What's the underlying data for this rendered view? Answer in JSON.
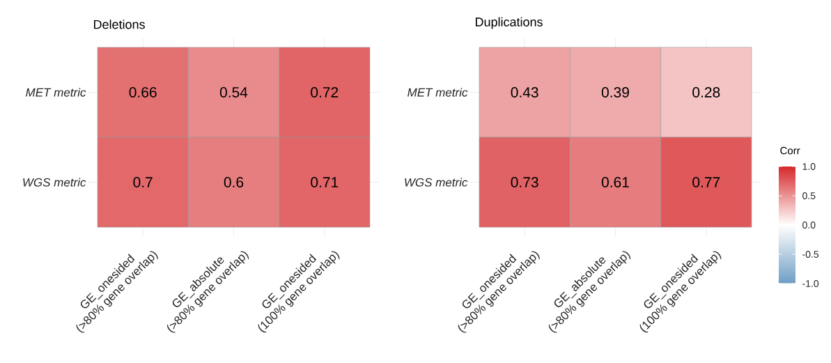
{
  "chart_data": [
    {
      "type": "heatmap",
      "title": "Deletions",
      "categories": [
        "GE_onesided\n(>80% gene overlap)",
        "GE_absolute\n(>80% gene overlap)",
        "GE_onesided\n(100% gene overlap)"
      ],
      "y_categories": [
        "MET metric",
        "WGS metric"
      ],
      "cells": [
        [
          0.66,
          0.54,
          0.72
        ],
        [
          0.7,
          0.6,
          0.71
        ]
      ],
      "data_labels": true,
      "grid": true
    },
    {
      "type": "heatmap",
      "title": "Duplications",
      "categories": [
        "GE_onesided\n(>80% gene overlap)",
        "GE_absolute\n(>80% gene overlap)",
        "GE_onesided\n(100% gene overlap)"
      ],
      "y_categories": [
        "MET metric",
        "WGS metric"
      ],
      "cells": [
        [
          0.43,
          0.39,
          0.28
        ],
        [
          0.73,
          0.61,
          0.77
        ]
      ],
      "data_labels": true,
      "grid": true,
      "clabel": "Corr",
      "clim": [
        -1,
        1
      ],
      "cticks": [
        {
          "value": 1,
          "label": "1.0"
        },
        {
          "value": 0.5,
          "label": "0.5"
        },
        {
          "value": 0,
          "label": "0.0"
        },
        {
          "value": -0.5,
          "label": "-0.5"
        },
        {
          "value": -1,
          "label": "-1.0"
        }
      ]
    }
  ]
}
